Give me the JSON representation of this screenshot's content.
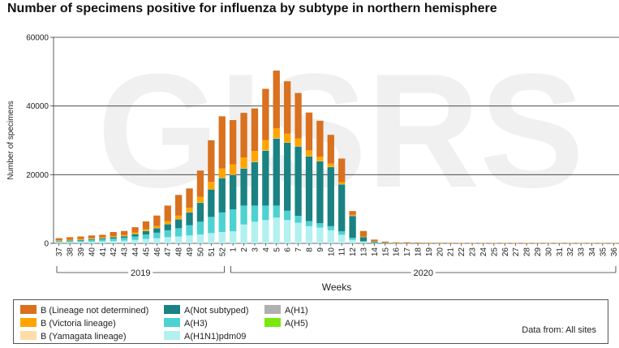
{
  "title": "Number of specimens positive for influenza by subtype in northern hemisphere",
  "watermark": "GISRS",
  "data_source_note": "Data from: All sites",
  "chart_data": {
    "type": "bar",
    "stacked": true,
    "title": "Number of specimens positive for influenza by subtype in northern hemisphere",
    "xlabel": "Weeks",
    "ylabel": "Number of specimens",
    "ylim": [
      0,
      60000
    ],
    "yticks": [
      0,
      20000,
      40000,
      60000
    ],
    "ytick_labels": [
      "0",
      "20000",
      "40000",
      "60000"
    ],
    "grid": "horizontal",
    "categories": [
      "37",
      "38",
      "39",
      "40",
      "41",
      "42",
      "43",
      "44",
      "45",
      "46",
      "47",
      "48",
      "49",
      "50",
      "51",
      "52",
      "1",
      "2",
      "3",
      "4",
      "5",
      "6",
      "7",
      "8",
      "9",
      "10",
      "11",
      "12",
      "13",
      "14",
      "15",
      "16",
      "17",
      "18",
      "19",
      "20",
      "21",
      "22",
      "23",
      "24",
      "25",
      "26",
      "27",
      "28",
      "29",
      "30",
      "31",
      "32",
      "33",
      "34",
      "35",
      "36"
    ],
    "year_groups": [
      {
        "label": "2019",
        "start": 0,
        "end": 15
      },
      {
        "label": "2020",
        "start": 16,
        "end": 51
      }
    ],
    "series": [
      {
        "name": "A(H1N1)pdm09",
        "color": "#b3f0f0",
        "values": [
          300,
          350,
          400,
          500,
          600,
          700,
          800,
          1000,
          1300,
          1500,
          1800,
          2000,
          2300,
          2600,
          3000,
          3300,
          3500,
          5500,
          6300,
          6800,
          7500,
          6800,
          6000,
          5000,
          4600,
          3800,
          2500,
          1000,
          400,
          150,
          60,
          30,
          15,
          10,
          5,
          5,
          3,
          3,
          2,
          2,
          2,
          2,
          1,
          1,
          1,
          1,
          1,
          1,
          1,
          1,
          1,
          1
        ]
      },
      {
        "name": "A(H3)",
        "color": "#4dd2d2",
        "values": [
          300,
          350,
          400,
          500,
          600,
          700,
          800,
          1000,
          1300,
          1600,
          2000,
          2400,
          3000,
          3700,
          4700,
          5700,
          6400,
          5500,
          4700,
          4200,
          3500,
          2700,
          2000,
          1500,
          1300,
          1200,
          1000,
          600,
          250,
          100,
          40,
          20,
          10,
          5,
          3,
          3,
          2,
          2,
          1,
          1,
          1,
          1,
          1,
          1,
          1,
          1,
          1,
          1,
          1,
          1,
          1,
          1
        ]
      },
      {
        "name": "A(Not subtyped)",
        "color": "#1a8282",
        "values": [
          100,
          150,
          200,
          250,
          300,
          400,
          500,
          700,
          1000,
          1300,
          1800,
          2600,
          3700,
          5500,
          8000,
          10000,
          10000,
          10800,
          12700,
          16000,
          19500,
          19800,
          20200,
          18800,
          18000,
          17200,
          13700,
          6400,
          1200,
          300,
          100,
          50,
          20,
          10,
          5,
          5,
          3,
          3,
          2,
          2,
          2,
          2,
          1,
          1,
          1,
          1,
          1,
          1,
          1,
          1,
          1,
          1
        ]
      },
      {
        "name": "A(H1)",
        "color": "#b0b0b0",
        "values": [
          0,
          0,
          0,
          0,
          0,
          0,
          0,
          0,
          0,
          0,
          0,
          0,
          0,
          0,
          0,
          0,
          0,
          0,
          0,
          0,
          0,
          0,
          0,
          0,
          0,
          0,
          0,
          0,
          0,
          0,
          0,
          0,
          0,
          0,
          0,
          0,
          0,
          0,
          0,
          0,
          0,
          0,
          0,
          0,
          0,
          0,
          0,
          0,
          0,
          0,
          0,
          0
        ]
      },
      {
        "name": "A(H5)",
        "color": "#7ae80e",
        "values": [
          0,
          0,
          0,
          0,
          0,
          0,
          0,
          0,
          0,
          0,
          0,
          0,
          0,
          0,
          0,
          0,
          0,
          0,
          0,
          0,
          0,
          0,
          0,
          0,
          0,
          0,
          0,
          0,
          0,
          0,
          0,
          0,
          0,
          0,
          0,
          0,
          0,
          0,
          0,
          0,
          0,
          0,
          0,
          0,
          0,
          0,
          0,
          0,
          0,
          0,
          0,
          0
        ]
      },
      {
        "name": "B (Yamagata lineage)",
        "color": "#ffdca8",
        "values": [
          20,
          20,
          20,
          20,
          30,
          30,
          30,
          40,
          50,
          50,
          60,
          60,
          70,
          80,
          90,
          100,
          100,
          110,
          110,
          110,
          110,
          100,
          90,
          80,
          70,
          60,
          40,
          20,
          10,
          5,
          2,
          1,
          1,
          0,
          0,
          0,
          0,
          0,
          0,
          0,
          0,
          0,
          0,
          0,
          0,
          0,
          0,
          0,
          0,
          0,
          0,
          0
        ]
      },
      {
        "name": "B (Victoria lineage)",
        "color": "#ffa500",
        "values": [
          150,
          150,
          200,
          200,
          250,
          300,
          350,
          400,
          500,
          600,
          800,
          1000,
          1300,
          1700,
          2100,
          2700,
          3000,
          3100,
          3100,
          3000,
          2900,
          2600,
          2300,
          1700,
          1300,
          1000,
          600,
          300,
          150,
          60,
          25,
          10,
          5,
          3,
          2,
          2,
          1,
          1,
          1,
          1,
          1,
          1,
          1,
          1,
          1,
          1,
          1,
          1,
          1,
          1,
          1,
          1
        ]
      },
      {
        "name": "B (Lineage not determined)",
        "color": "#d9711f",
        "values": [
          630,
          780,
          780,
          830,
          720,
          1170,
          1120,
          1560,
          2250,
          3050,
          4540,
          6040,
          5630,
          7620,
          12110,
          15200,
          12900,
          12990,
          12390,
          14890,
          16790,
          15200,
          13210,
          11020,
          10430,
          8340,
          6860,
          1080,
          1590,
          485,
          278,
          189,
          249,
          172,
          145,
          135,
          130,
          121,
          116,
          114,
          114,
          114,
          116,
          116,
          116,
          116,
          116,
          116,
          116,
          116,
          116,
          116
        ]
      }
    ],
    "legend_position": "bottom"
  }
}
